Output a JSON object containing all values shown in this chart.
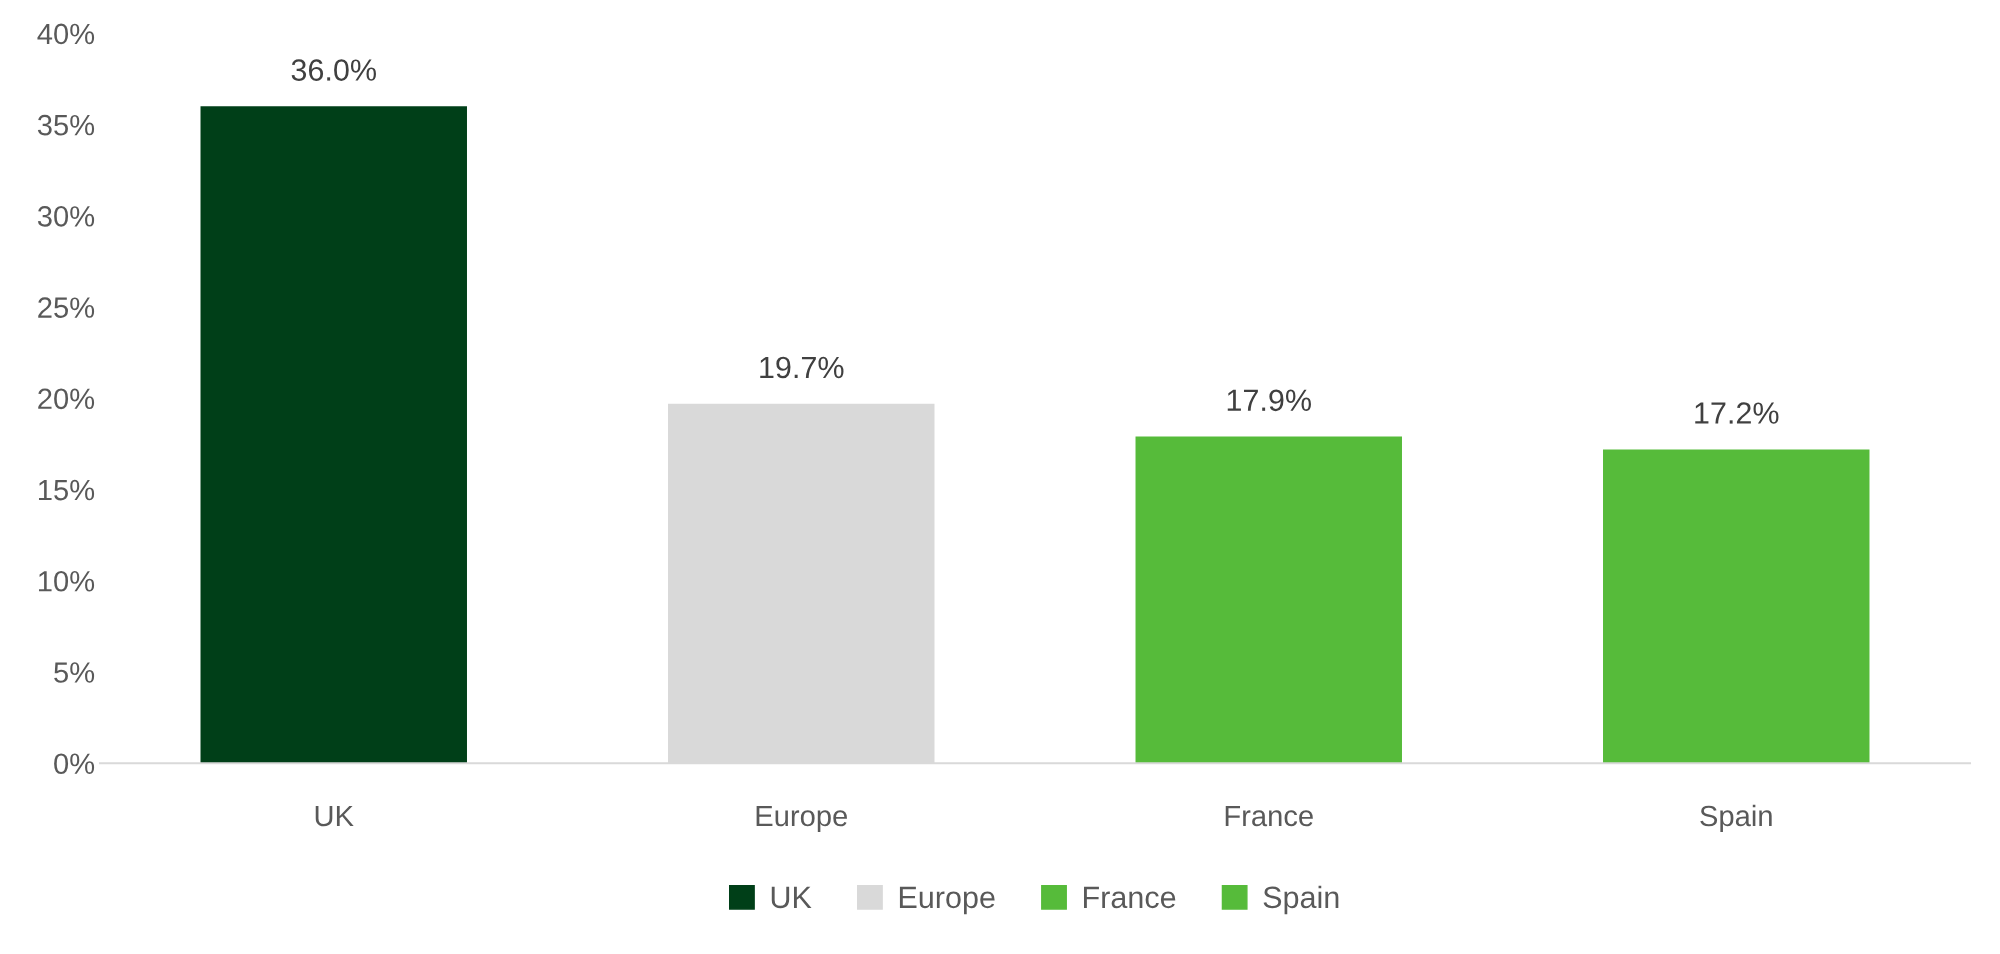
{
  "chart_data": {
    "type": "bar",
    "stacked": true,
    "categories": [
      "UK",
      "Europe",
      "France",
      "Spain"
    ],
    "series": [
      {
        "name": "UK",
        "color": "#003f18",
        "values": [
          36.0,
          null,
          null,
          null
        ],
        "value_labels": [
          "36.0%",
          null,
          null,
          null
        ]
      },
      {
        "name": "Europe",
        "color": "#d9d9d9",
        "values": [
          null,
          19.7,
          null,
          null
        ],
        "value_labels": [
          null,
          "19.7%",
          null,
          null
        ]
      },
      {
        "name": "France",
        "color": "#56bb3a",
        "values": [
          null,
          null,
          17.9,
          null
        ],
        "value_labels": [
          null,
          null,
          "17.9%",
          null
        ]
      },
      {
        "name": "Spain",
        "color": "#56bb3a",
        "values": [
          null,
          null,
          null,
          17.2
        ],
        "value_labels": [
          null,
          null,
          null,
          "17.2%"
        ]
      }
    ],
    "ylim": [
      0,
      40
    ],
    "yticks": [
      {
        "value": 0,
        "label": "0%"
      },
      {
        "value": 5,
        "label": "5%"
      },
      {
        "value": 10,
        "label": "10%"
      },
      {
        "value": 15,
        "label": "15%"
      },
      {
        "value": 20,
        "label": "20%"
      },
      {
        "value": 25,
        "label": "25%"
      },
      {
        "value": 30,
        "label": "30%"
      },
      {
        "value": 35,
        "label": "35%"
      },
      {
        "value": 40,
        "label": "40%"
      }
    ],
    "grid": false,
    "legend": "bottom"
  }
}
